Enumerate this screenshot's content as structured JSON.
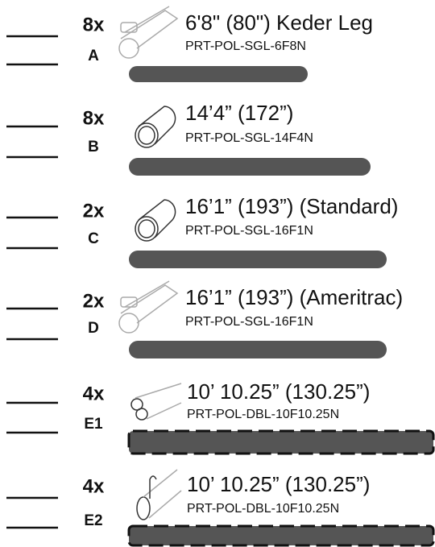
{
  "items": [
    {
      "qty": "8x",
      "letter": "A",
      "name": "6'8\" (80\") Keder Leg",
      "part": "PRT-POL-SGL-6F8N"
    },
    {
      "qty": "8x",
      "letter": "B",
      "name": "14’4” (172”)",
      "part": "PRT-POL-SGL-14F4N"
    },
    {
      "qty": "2x",
      "letter": "C",
      "name": "16’1” (193”) (Standard)",
      "part": "PRT-POL-SGL-16F1N"
    },
    {
      "qty": "2x",
      "letter": "D",
      "name": "16’1” (193”) (Ameritrac)",
      "part": "PRT-POL-SGL-16F1N"
    },
    {
      "qty": "4x",
      "letter": "E1",
      "name": "10’ 10.25” (130.25”)",
      "part": "PRT-POL-DBL-10F10.25N"
    },
    {
      "qty": "4x",
      "letter": "E2",
      "name": "10’ 10.25” (130.25”)",
      "part": "PRT-POL-DBL-10F10.25N"
    }
  ]
}
